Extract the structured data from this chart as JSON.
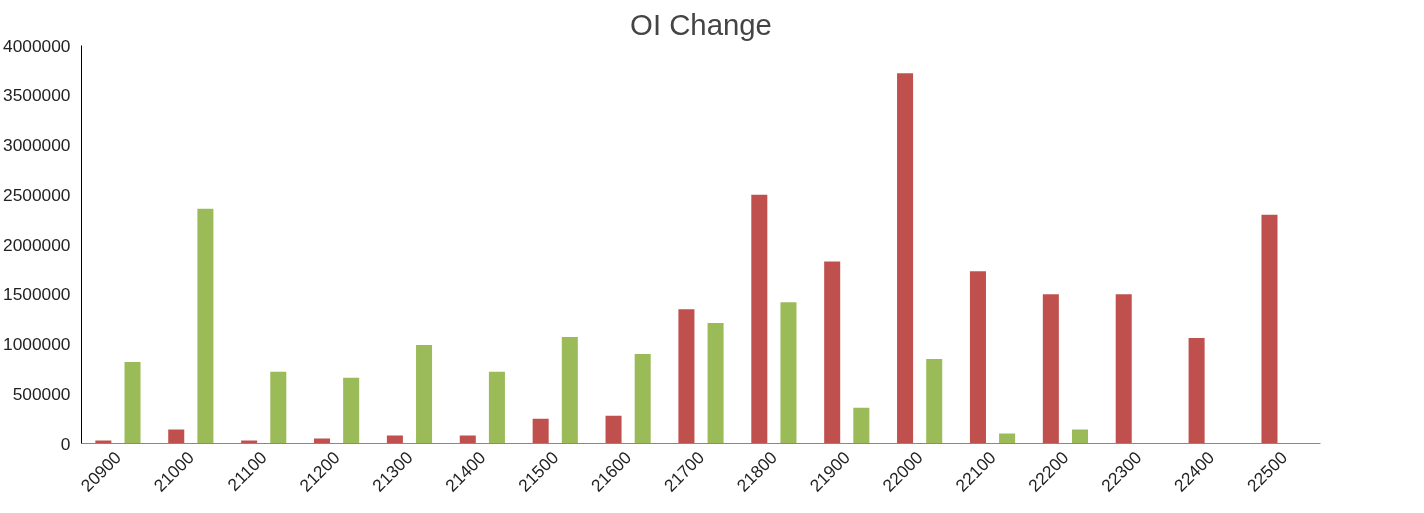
{
  "chart_data": {
    "type": "bar",
    "title": "OI Change",
    "categories": [
      "20900",
      "21000",
      "21100",
      "21200",
      "21300",
      "21400",
      "21500",
      "21600",
      "21700",
      "21800",
      "21900",
      "22000",
      "22100",
      "22200",
      "22300",
      "22400",
      "22500"
    ],
    "series": [
      {
        "color": "#c0504d",
        "values": [
          30000,
          140000,
          30000,
          50000,
          80000,
          80000,
          250000,
          280000,
          1350000,
          2500000,
          1830000,
          3720000,
          1730000,
          1500000,
          1500000,
          1060000,
          2300000
        ]
      },
      {
        "color": "#9bbb59",
        "values": [
          820000,
          2360000,
          720000,
          660000,
          990000,
          720000,
          1070000,
          900000,
          1210000,
          1420000,
          360000,
          850000,
          100000,
          140000,
          null,
          null,
          null
        ]
      }
    ],
    "ylim": [
      0,
      4000000
    ],
    "yticks": [
      0,
      500000,
      1000000,
      1500000,
      2000000,
      2500000,
      3000000,
      3500000,
      4000000
    ],
    "grid": false
  }
}
